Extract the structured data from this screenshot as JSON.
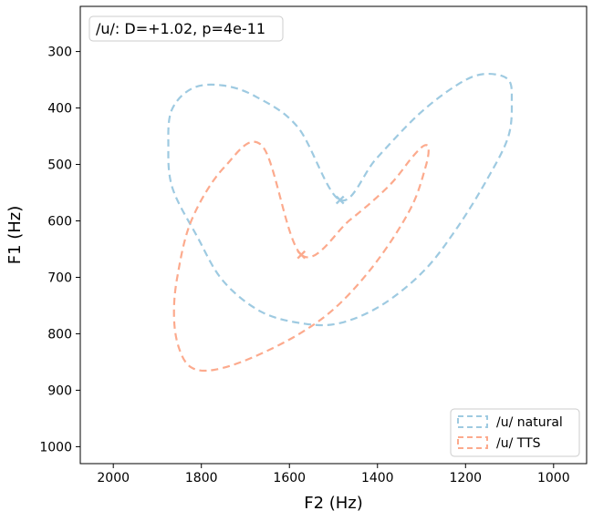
{
  "chart_data": {
    "type": "scatter",
    "annotation": "/u/: D=+1.02, p=4e-11",
    "xlabel": "F2 (Hz)",
    "ylabel": "F1 (Hz)",
    "x_reversed": true,
    "y_reversed": true,
    "xlim": [
      2075,
      925
    ],
    "ylim": [
      1030,
      220
    ],
    "xticks": [
      2000,
      1800,
      1600,
      1400,
      1200,
      1000
    ],
    "yticks": [
      300,
      400,
      500,
      600,
      700,
      800,
      900,
      1000
    ],
    "grid": false,
    "legend_position": "lower-right",
    "series": [
      {
        "name": "/u/ natural",
        "color": "#9ecae1",
        "mean": {
          "f2": 1485,
          "f1": 563
        },
        "ellipse_f2": [
          1485,
          1403,
          1306,
          1219,
          1160,
          1104,
          1095,
          1103,
          1150,
          1218,
          1294,
          1390,
          1485,
          1567,
          1664,
          1751,
          1810,
          1866,
          1875,
          1867,
          1820,
          1752,
          1676,
          1580
        ],
        "ellipse_f1": [
          563,
          490,
          411,
          359,
          340,
          349,
          388,
          451,
          525,
          611,
          688,
          749,
          781,
          782,
          761,
          706,
          627,
          541,
          465,
          403,
          365,
          360,
          380,
          435
        ]
      },
      {
        "name": "/u/ TTS",
        "color": "#fcaa8d",
        "mean": {
          "f2": 1573,
          "f1": 660
        },
        "ellipse_f2": [
          1573,
          1462,
          1374,
          1322,
          1295,
          1284,
          1291,
          1324,
          1398,
          1485,
          1573,
          1684,
          1772,
          1824,
          1851,
          1862,
          1855,
          1822,
          1748,
          1661
        ],
        "ellipse_f1": [
          660,
          598,
          538,
          488,
          467,
          472,
          505,
          577,
          668,
          746,
          798,
          842,
          864,
          859,
          825,
          772,
          701,
          598,
          505,
          468
        ]
      }
    ]
  }
}
